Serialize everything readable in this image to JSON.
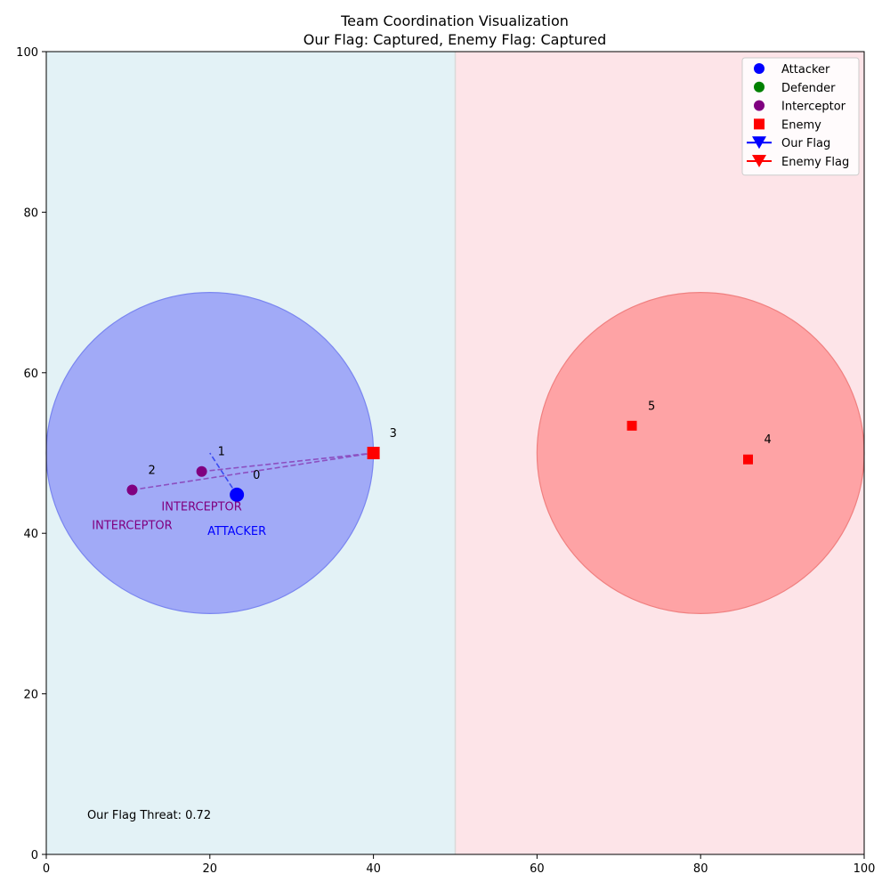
{
  "chart_data": {
    "type": "scatter",
    "title_line1": "Team Coordination Visualization",
    "title_line2": "Our Flag: Captured, Enemy Flag: Captured",
    "xlim": [
      0,
      100
    ],
    "ylim": [
      0,
      100
    ],
    "x_ticks": [
      0,
      20,
      40,
      60,
      80,
      100
    ],
    "y_ticks": [
      0,
      20,
      40,
      60,
      80,
      100
    ],
    "x_tick_labels": [
      "0",
      "20",
      "40",
      "60",
      "80",
      "100"
    ],
    "y_tick_labels": [
      "0",
      "20",
      "40",
      "60",
      "80",
      "100"
    ],
    "regions": {
      "our_side": {
        "x_from": 0,
        "x_to": 50,
        "color": "#e3f2f6"
      },
      "enemy_side": {
        "x_from": 50,
        "x_to": 100,
        "color": "#fde4e8"
      },
      "divider_x": 50
    },
    "zones": [
      {
        "name": "our-flag-zone",
        "cx": 20,
        "cy": 50,
        "r": 20,
        "fill": "#a1aaf7",
        "stroke": "#7a86f0"
      },
      {
        "name": "enemy-flag-zone",
        "cx": 80,
        "cy": 50,
        "r": 20,
        "fill": "#fea3a5",
        "stroke": "#f08080"
      }
    ],
    "agents": [
      {
        "id": "0",
        "role": "attacker",
        "label": "ATTACKER",
        "x": 23.3,
        "y": 44.8,
        "color": "#0000ff",
        "size": "large",
        "label_color": "#0000ff"
      },
      {
        "id": "1",
        "role": "interceptor",
        "label": "INTERCEPTOR",
        "x": 19.0,
        "y": 47.7,
        "color": "#800080",
        "size": "small",
        "label_color": "#800080"
      },
      {
        "id": "2",
        "role": "interceptor",
        "label": "INTERCEPTOR",
        "x": 10.5,
        "y": 45.4,
        "color": "#800080",
        "size": "small",
        "label_color": "#800080"
      }
    ],
    "enemies": [
      {
        "id": "3",
        "x": 40.0,
        "y": 50.0,
        "size": "large"
      },
      {
        "id": "4",
        "x": 85.8,
        "y": 49.2,
        "size": "small"
      },
      {
        "id": "5",
        "x": 71.6,
        "y": 53.4,
        "size": "small"
      }
    ],
    "paths": [
      {
        "name": "attacker-path",
        "from": [
          23.3,
          44.8
        ],
        "to": [
          20.0,
          50.0
        ],
        "color": "#3b4cf0"
      },
      {
        "name": "interceptor-1-path",
        "from": [
          19.0,
          47.7
        ],
        "to": [
          40.0,
          50.0
        ],
        "color": "#8c4fc0"
      },
      {
        "name": "interceptor-2-path",
        "from": [
          10.5,
          45.4
        ],
        "to": [
          40.0,
          50.0
        ],
        "color": "#8c4fc0"
      }
    ],
    "annotation": {
      "text": "Our Flag Threat: 0.72",
      "x": 5,
      "y": 5
    },
    "legend": {
      "position": "top-right",
      "entries": [
        {
          "label": "Attacker",
          "marker": "circle",
          "color": "#0000ff"
        },
        {
          "label": "Defender",
          "marker": "circle",
          "color": "#008000"
        },
        {
          "label": "Interceptor",
          "marker": "circle",
          "color": "#800080"
        },
        {
          "label": "Enemy",
          "marker": "square",
          "color": "#ff0000"
        },
        {
          "label": "Our Flag",
          "marker": "triangle-down-line",
          "color": "#0000ff"
        },
        {
          "label": "Enemy Flag",
          "marker": "triangle-down-line",
          "color": "#ff0000"
        }
      ]
    }
  }
}
